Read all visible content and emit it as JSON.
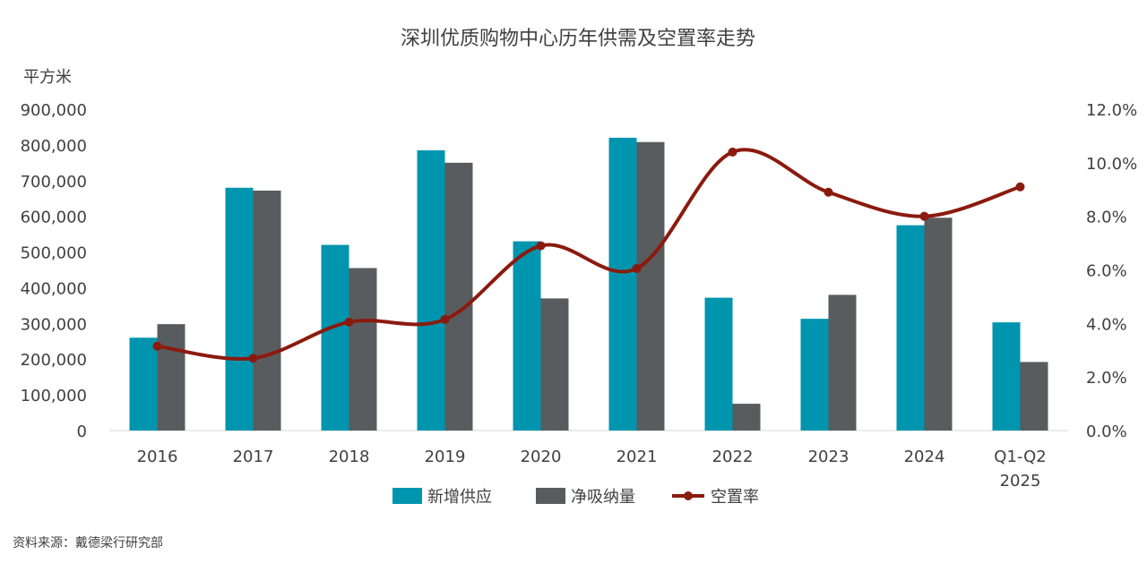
{
  "chart_data": {
    "type": "bar",
    "title": "深圳优质购物中心历年供需及空置率走势",
    "y_unit_label": "平方米",
    "categories": [
      "2016",
      "2017",
      "2018",
      "2019",
      "2020",
      "2021",
      "2022",
      "2023",
      "2024",
      [
        "Q1-Q2",
        "2025"
      ]
    ],
    "series": [
      {
        "name": "新增供应",
        "kind": "bar",
        "axis": "left",
        "color": "#0095AE",
        "values": [
          260000,
          680000,
          520000,
          785000,
          530000,
          820000,
          372000,
          313000,
          575000,
          303000
        ]
      },
      {
        "name": "净吸纳量",
        "kind": "bar",
        "axis": "left",
        "color": "#595C5E",
        "values": [
          298000,
          672000,
          455000,
          750000,
          370000,
          808000,
          75000,
          380000,
          596000,
          192000
        ]
      },
      {
        "name": "空置率",
        "kind": "line",
        "axis": "right",
        "color": "#8B1A0E",
        "values": [
          3.15,
          2.7,
          4.05,
          4.15,
          6.9,
          6.05,
          10.4,
          8.9,
          8.0,
          9.1
        ]
      }
    ],
    "left_axis": {
      "min": 0,
      "max": 900000,
      "step": 100000,
      "tick_labels": [
        "0",
        "100,000",
        "200,000",
        "300,000",
        "400,000",
        "500,000",
        "600,000",
        "700,000",
        "800,000",
        "900,000"
      ]
    },
    "right_axis": {
      "min": 0,
      "max": 12,
      "step": 2,
      "tick_labels": [
        "0.0%",
        "2.0%",
        "4.0%",
        "6.0%",
        "8.0%",
        "10.0%",
        "12.0%"
      ]
    },
    "grid": false,
    "legend_position": "bottom"
  },
  "source": "资料来源：戴德梁行研究部"
}
